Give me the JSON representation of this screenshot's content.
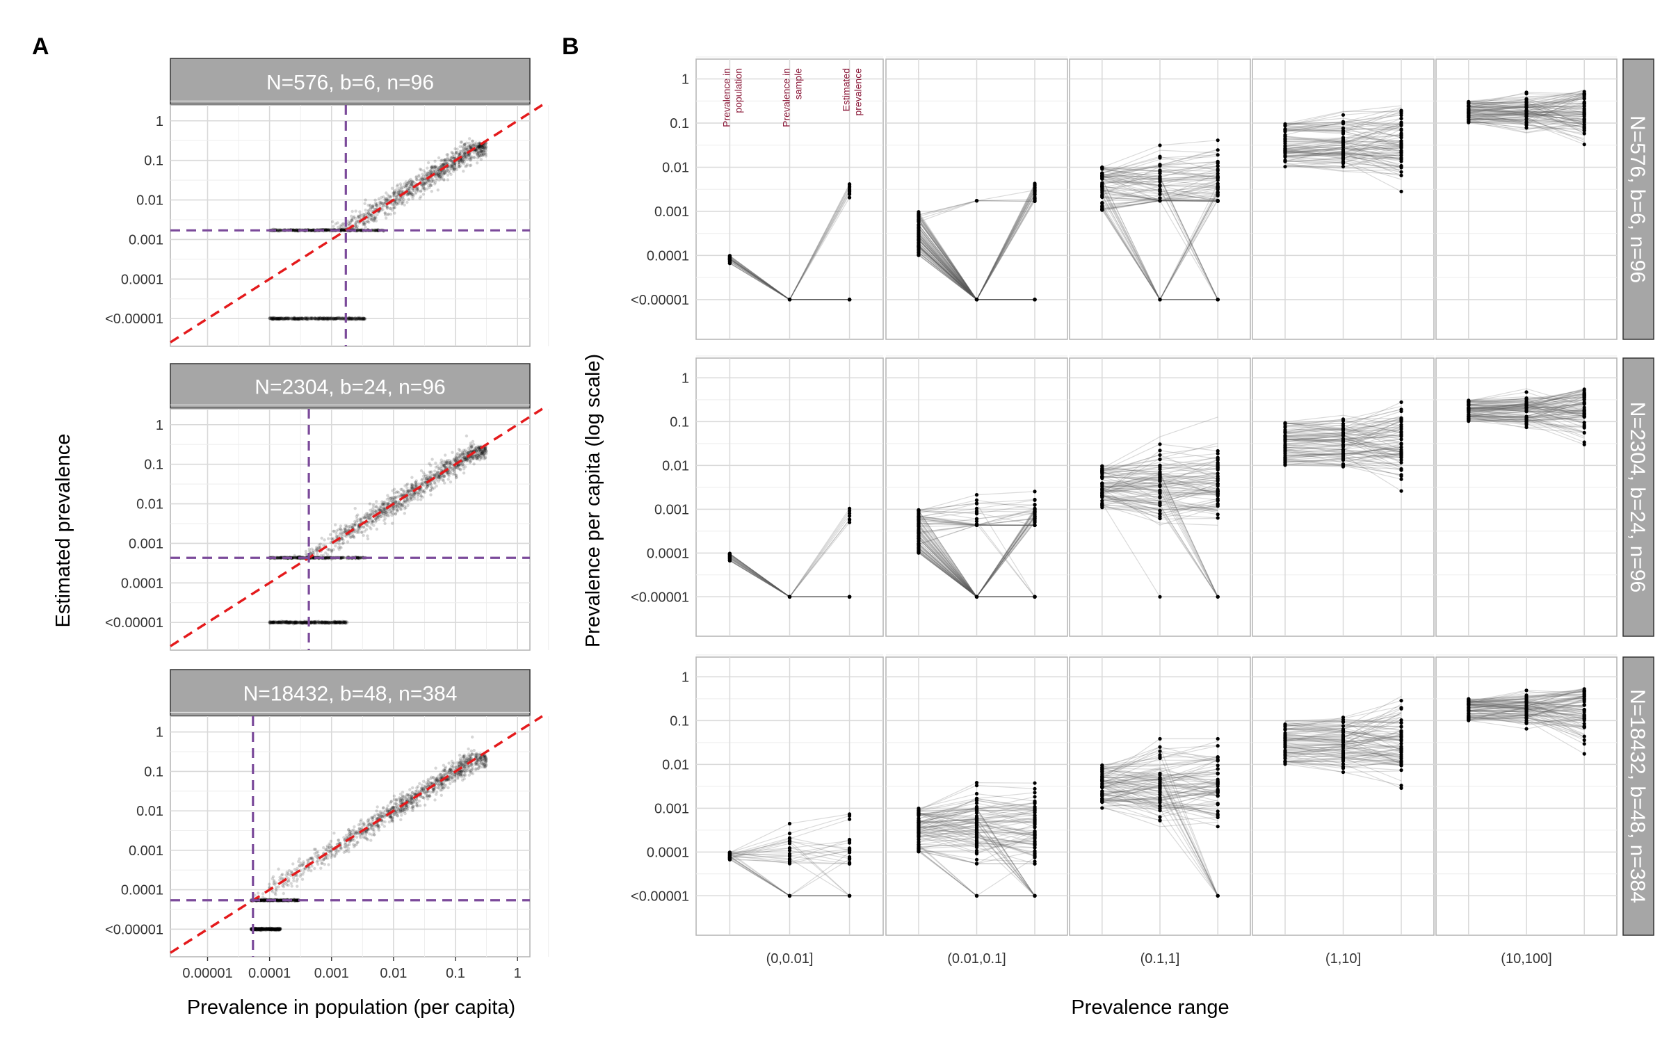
{
  "panel_labels": [
    "A",
    "B"
  ],
  "colors": {
    "strip_bg": "#a6a6a6",
    "strip_text": "#ffffff",
    "identity_line": "#e41a1c",
    "threshold_line": "#7b4a9a",
    "annotation": "#8b1a3a",
    "points": "#000000",
    "trajectories": "#555555",
    "grid": "#d9d9d9",
    "panel_border": "#b3b3b3"
  },
  "chart_data": [
    {
      "id": "A",
      "type": "scatter",
      "xlabel": "Prevalence in population (per capita)",
      "ylabel": "Estimated prevalence",
      "x_ticks": [
        "0.00001",
        "0.0001",
        "0.001",
        "0.01",
        "0.1",
        "1"
      ],
      "y_ticks": [
        "<0.00001",
        "0.0001",
        "0.001",
        "0.01",
        "0.1",
        "1"
      ],
      "x_log_range": [
        -5.6,
        0.2
      ],
      "y_log_range": [
        -5.7,
        0.4
      ],
      "log_scale": true,
      "grid": true,
      "facets": [
        {
          "strip": "N=576, b=6, n=96",
          "pop_log_range": [
            -4.0,
            -0.5
          ],
          "threshold": 0.0017,
          "detect_floor": 0.0017,
          "undetected_max": 0.0035
        },
        {
          "strip": "N=2304, b=24, n=96",
          "pop_log_range": [
            -4.0,
            -0.5
          ],
          "threshold": 0.00043,
          "detect_floor": 0.00043,
          "undetected_max": 0.0018
        },
        {
          "strip": "N=18432, b=48, n=384",
          "pop_log_range": [
            -4.3,
            -0.5
          ],
          "threshold": 5.4e-05,
          "detect_floor": 5.4e-05,
          "undetected_max": 0.00015
        }
      ]
    },
    {
      "id": "B",
      "type": "line",
      "xlabel": "Prevalence range",
      "ylabel": "Prevalence per capita (log scale)",
      "categories": [
        "(0,0.01]",
        "(0.01,0.1]",
        "(0.1,1]",
        "(1,10]",
        "(10,100]"
      ],
      "stages": [
        "Prevalence in population",
        "Prevalence in sample",
        "Estimated prevalence"
      ],
      "y_ticks": [
        "<0.00001",
        "0.0001",
        "0.001",
        "0.01",
        "0.1",
        "1"
      ],
      "log_scale": true,
      "grid": true,
      "rows": [
        {
          "strip": "N=576, b=6, n=96",
          "detect_floor": 0.0017,
          "sample_size": 576
        },
        {
          "strip": "N=2304, b=24, n=96",
          "detect_floor": 0.00043,
          "sample_size": 2304
        },
        {
          "strip": "N=18432, b=48, n=384",
          "detect_floor": 5.4e-05,
          "sample_size": 18432
        }
      ]
    }
  ]
}
